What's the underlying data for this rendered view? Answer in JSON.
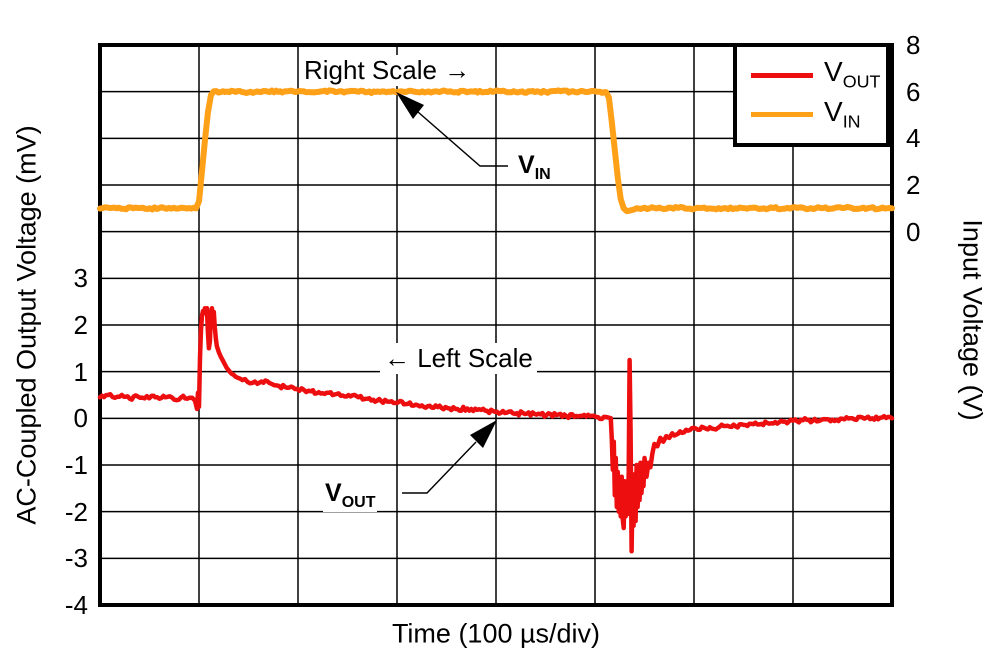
{
  "figure": {
    "background": "#FFFFFF",
    "frame_color": "#000000",
    "grid_color": "#000000",
    "vout_color": "#ED0E10",
    "vin_color": "#FFA019"
  },
  "chart_data": {
    "type": "line",
    "title": "",
    "xlabel": "Time (100 µs/div)",
    "x_unit": "µs",
    "x_range_us": [
      0,
      800
    ],
    "x_divisions": 8,
    "y_divisions": 12,
    "grid": "on",
    "legend_position": "top-right",
    "left_axis": {
      "label": "AC-Coupled Output Voltage (mV)",
      "unit": "mV",
      "top_value": 8,
      "units_per_div": 1,
      "ticks": [
        3,
        2,
        1,
        0,
        -1,
        -2,
        -3,
        -4
      ]
    },
    "right_axis": {
      "label": "Input Voltage (V)",
      "unit": "V",
      "top_value": 8,
      "units_per_div": 2,
      "ticks": [
        8,
        6,
        4,
        2,
        0
      ]
    },
    "series": [
      {
        "name": "VIN",
        "axis": "right",
        "color": "#FFA019",
        "stroke_width": 6,
        "noise": 0.05,
        "points": [
          [
            0,
            0.99
          ],
          [
            12,
            1.02
          ],
          [
            24,
            0.98
          ],
          [
            36,
            1.03
          ],
          [
            48,
            0.97
          ],
          [
            60,
            1.01
          ],
          [
            72,
            0.99
          ],
          [
            84,
            1.02
          ],
          [
            92,
            0.99
          ],
          [
            97,
            1.0
          ],
          [
            100,
            1.3
          ],
          [
            103,
            2.6
          ],
          [
            106,
            3.9
          ],
          [
            109,
            5.1
          ],
          [
            112,
            5.85
          ],
          [
            115,
            6.02
          ],
          [
            122,
            5.98
          ],
          [
            135,
            6.02
          ],
          [
            150,
            5.97
          ],
          [
            165,
            6.03
          ],
          [
            180,
            5.99
          ],
          [
            195,
            6.02
          ],
          [
            210,
            5.98
          ],
          [
            225,
            6.02
          ],
          [
            240,
            5.99
          ],
          [
            255,
            6.03
          ],
          [
            270,
            5.98
          ],
          [
            285,
            6.01
          ],
          [
            300,
            5.98
          ],
          [
            315,
            6.03
          ],
          [
            330,
            5.99
          ],
          [
            345,
            6.02
          ],
          [
            360,
            5.98
          ],
          [
            375,
            6.01
          ],
          [
            390,
            5.99
          ],
          [
            405,
            6.02
          ],
          [
            420,
            5.98
          ],
          [
            435,
            6.01
          ],
          [
            450,
            5.99
          ],
          [
            465,
            6.02
          ],
          [
            480,
            5.98
          ],
          [
            495,
            6.01
          ],
          [
            505,
            6.0
          ],
          [
            511,
            5.98
          ],
          [
            514,
            5.75
          ],
          [
            517,
            4.7
          ],
          [
            520,
            3.5
          ],
          [
            523,
            2.3
          ],
          [
            526,
            1.4
          ],
          [
            529,
            1.0
          ],
          [
            532,
            0.88
          ],
          [
            535,
            0.9
          ],
          [
            540,
            0.96
          ],
          [
            548,
            1.0
          ],
          [
            560,
            1.02
          ],
          [
            572,
            0.98
          ],
          [
            584,
            1.02
          ],
          [
            596,
            0.99
          ],
          [
            608,
            1.02
          ],
          [
            620,
            0.98
          ],
          [
            632,
            1.01
          ],
          [
            644,
            0.99
          ],
          [
            656,
            1.02
          ],
          [
            668,
            0.98
          ],
          [
            680,
            1.01
          ],
          [
            692,
            0.99
          ],
          [
            704,
            1.02
          ],
          [
            716,
            0.98
          ],
          [
            728,
            1.01
          ],
          [
            740,
            0.99
          ],
          [
            752,
            1.02
          ],
          [
            764,
            0.98
          ],
          [
            776,
            1.01
          ],
          [
            788,
            0.99
          ],
          [
            800,
            1.0
          ]
        ]
      },
      {
        "name": "VOUT",
        "axis": "left",
        "color": "#ED0E10",
        "stroke_width": 4.5,
        "noise": 0.045,
        "points": [
          [
            0,
            0.45
          ],
          [
            8,
            0.5
          ],
          [
            15,
            0.44
          ],
          [
            22,
            0.5
          ],
          [
            30,
            0.42
          ],
          [
            38,
            0.47
          ],
          [
            45,
            0.43
          ],
          [
            52,
            0.48
          ],
          [
            60,
            0.42
          ],
          [
            68,
            0.46
          ],
          [
            75,
            0.4
          ],
          [
            82,
            0.45
          ],
          [
            88,
            0.42
          ],
          [
            93,
            0.44
          ],
          [
            96,
            0.38
          ],
          [
            98,
            0.2
          ],
          [
            99,
            0.55
          ],
          [
            100,
            0.25
          ],
          [
            101,
            1.3
          ],
          [
            102,
            1.9
          ],
          [
            103,
            2.2
          ],
          [
            104,
            2.3
          ],
          [
            105,
            2.25
          ],
          [
            106,
            2.36
          ],
          [
            107,
            2.28
          ],
          [
            108,
            2.36
          ],
          [
            109,
            1.85
          ],
          [
            110,
            1.5
          ],
          [
            111,
            1.65
          ],
          [
            112,
            2.25
          ],
          [
            113,
            2.36
          ],
          [
            114,
            2.2
          ],
          [
            115,
            2.28
          ],
          [
            116,
            1.95
          ],
          [
            117,
            1.72
          ],
          [
            118,
            1.55
          ],
          [
            120,
            1.42
          ],
          [
            122,
            1.32
          ],
          [
            125,
            1.2
          ],
          [
            128,
            1.08
          ],
          [
            131,
            1.0
          ],
          [
            135,
            0.93
          ],
          [
            139,
            0.87
          ],
          [
            144,
            0.82
          ],
          [
            149,
            0.78
          ],
          [
            154,
            0.76
          ],
          [
            159,
            0.74
          ],
          [
            163,
            0.79
          ],
          [
            167,
            0.81
          ],
          [
            171,
            0.76
          ],
          [
            176,
            0.71
          ],
          [
            181,
            0.69
          ],
          [
            187,
            0.67
          ],
          [
            193,
            0.68
          ],
          [
            199,
            0.63
          ],
          [
            206,
            0.61
          ],
          [
            213,
            0.58
          ],
          [
            221,
            0.56
          ],
          [
            229,
            0.55
          ],
          [
            237,
            0.51
          ],
          [
            245,
            0.49
          ],
          [
            253,
            0.47
          ],
          [
            261,
            0.45
          ],
          [
            270,
            0.42
          ],
          [
            280,
            0.38
          ],
          [
            290,
            0.36
          ],
          [
            301,
            0.34
          ],
          [
            311,
            0.31
          ],
          [
            321,
            0.28
          ],
          [
            331,
            0.26
          ],
          [
            341,
            0.24
          ],
          [
            351,
            0.22
          ],
          [
            361,
            0.2
          ],
          [
            371,
            0.21
          ],
          [
            381,
            0.18
          ],
          [
            391,
            0.16
          ],
          [
            401,
            0.14
          ],
          [
            411,
            0.12
          ],
          [
            421,
            0.11
          ],
          [
            431,
            0.1
          ],
          [
            441,
            0.08
          ],
          [
            451,
            0.07
          ],
          [
            461,
            0.07
          ],
          [
            471,
            0.05
          ],
          [
            481,
            0.05
          ],
          [
            491,
            0.04
          ],
          [
            501,
            0.03
          ],
          [
            509,
            0.03
          ],
          [
            513,
            0.02
          ],
          [
            516,
            0.0
          ],
          [
            517,
            -0.45
          ],
          [
            518,
            -1.1
          ],
          [
            519,
            -0.5
          ],
          [
            520,
            -1.65
          ],
          [
            521,
            -0.85
          ],
          [
            522,
            -1.9
          ],
          [
            523,
            -1.15
          ],
          [
            524,
            -2.0
          ],
          [
            525,
            -1.45
          ],
          [
            526,
            -2.1
          ],
          [
            527,
            -1.25
          ],
          [
            528,
            -2.15
          ],
          [
            529,
            -2.35
          ],
          [
            530,
            -1.35
          ],
          [
            531,
            -2.1
          ],
          [
            532,
            -1.55
          ],
          [
            533,
            -2.05
          ],
          [
            534,
            -1.15
          ],
          [
            535,
            1.25
          ],
          [
            536,
            -0.3
          ],
          [
            537,
            -2.85
          ],
          [
            538,
            -1.45
          ],
          [
            539,
            -2.3
          ],
          [
            540,
            -1.2
          ],
          [
            541,
            -2.2
          ],
          [
            542,
            -1.0
          ],
          [
            543,
            -1.9
          ],
          [
            544,
            -1.35
          ],
          [
            545,
            -1.75
          ],
          [
            546,
            -0.95
          ],
          [
            547,
            -1.6
          ],
          [
            548,
            -1.15
          ],
          [
            549,
            -1.45
          ],
          [
            550,
            -0.85
          ],
          [
            552,
            -1.25
          ],
          [
            554,
            -0.95
          ],
          [
            556,
            -1.05
          ],
          [
            558,
            -0.75
          ],
          [
            560,
            -0.55
          ],
          [
            563,
            -0.6
          ],
          [
            566,
            -0.42
          ],
          [
            569,
            -0.5
          ],
          [
            572,
            -0.38
          ],
          [
            575,
            -0.42
          ],
          [
            578,
            -0.32
          ],
          [
            582,
            -0.35
          ],
          [
            586,
            -0.28
          ],
          [
            590,
            -0.3
          ],
          [
            596,
            -0.25
          ],
          [
            602,
            -0.22
          ],
          [
            610,
            -0.2
          ],
          [
            618,
            -0.22
          ],
          [
            626,
            -0.18
          ],
          [
            634,
            -0.16
          ],
          [
            642,
            -0.17
          ],
          [
            650,
            -0.14
          ],
          [
            658,
            -0.12
          ],
          [
            666,
            -0.13
          ],
          [
            674,
            -0.1
          ],
          [
            682,
            -0.08
          ],
          [
            690,
            -0.07
          ],
          [
            700,
            -0.05
          ],
          [
            710,
            -0.04
          ],
          [
            720,
            -0.05
          ],
          [
            730,
            -0.02
          ],
          [
            740,
            -0.03
          ],
          [
            750,
            -0.01
          ],
          [
            760,
            0.0
          ],
          [
            770,
            0.02
          ],
          [
            780,
            0.0
          ],
          [
            790,
            0.02
          ],
          [
            800,
            0.0
          ]
        ]
      }
    ],
    "annotations": {
      "right_scale": "Right Scale →",
      "left_scale": "← Left Scale",
      "vin_label": {
        "main": "V",
        "sub": "IN"
      },
      "vout_label": {
        "main": "V",
        "sub": "OUT"
      }
    },
    "legend": {
      "items": [
        {
          "main": "V",
          "sub": "OUT",
          "color": "#ED0E10"
        },
        {
          "main": "V",
          "sub": "IN",
          "color": "#FFA019"
        }
      ]
    }
  }
}
